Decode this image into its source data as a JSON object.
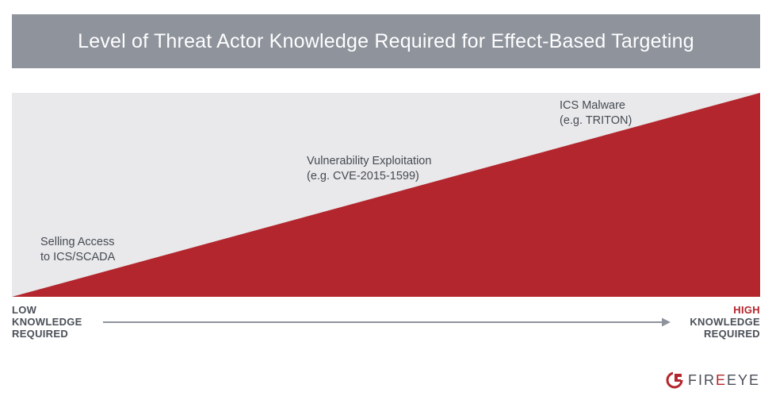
{
  "title": "Level of Threat Actor Knowledge Required for Effect-Based Targeting",
  "stages": [
    {
      "line1": "Selling Access",
      "line2": "to ICS/SCADA"
    },
    {
      "line1": "Vulnerability Exploitation",
      "line2": "(e.g. CVE-2015-1599)"
    },
    {
      "line1": "ICS Malware",
      "line2": "(e.g. TRITON)"
    }
  ],
  "axis": {
    "low": {
      "line1": "LOW",
      "line2": "KNOWLEDGE",
      "line3": "REQUIRED"
    },
    "high": {
      "line1": "HIGH",
      "line2": "KNOWLEDGE",
      "line3": "REQUIRED"
    }
  },
  "logo": {
    "part1": "FIR",
    "part2": "E",
    "part3": "EYE"
  },
  "colors": {
    "title_bg": "#8e939c",
    "panel_bg": "#e9e9eb",
    "wedge": "#b3262d",
    "text": "#444a52",
    "arrow": "#8e939c"
  }
}
